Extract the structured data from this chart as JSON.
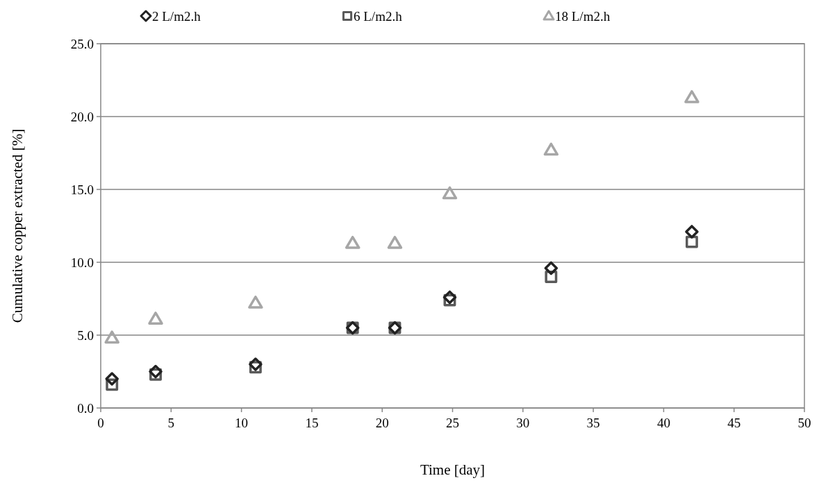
{
  "chart_data": {
    "type": "scatter",
    "xlabel": "Time [day]",
    "ylabel": "Cumulative copper extracted [%]",
    "x": [
      0.8,
      3.9,
      11,
      17.9,
      20.9,
      24.8,
      32,
      42
    ],
    "series": [
      {
        "name": "2 L/m2.h",
        "color": "#222222",
        "marker": "diamond",
        "values": [
          2.0,
          2.5,
          3.0,
          5.5,
          5.5,
          7.6,
          9.6,
          12.1
        ]
      },
      {
        "name": "6 L/m2.h",
        "color": "#595959",
        "marker": "square",
        "values": [
          1.6,
          2.3,
          2.8,
          5.5,
          5.5,
          7.4,
          9.0,
          11.4
        ]
      },
      {
        "name": "18 L/m2.h",
        "color": "#a6a6a6",
        "marker": "triangle",
        "values": [
          4.8,
          6.1,
          7.2,
          11.3,
          11.3,
          14.7,
          17.7,
          21.3
        ]
      }
    ],
    "xlim": [
      0,
      50
    ],
    "xticks": [
      0,
      5,
      10,
      15,
      20,
      25,
      30,
      35,
      40,
      45,
      50
    ],
    "ylim": [
      0,
      25
    ],
    "yticks": [
      {
        "value": 0,
        "label": "0.0"
      },
      {
        "value": 5,
        "label": "5.0"
      },
      {
        "value": 10,
        "label": "10.0"
      },
      {
        "value": 15,
        "label": "15.0"
      },
      {
        "value": 20,
        "label": "20.0"
      },
      {
        "value": 25,
        "label": "25.0"
      }
    ],
    "grid": "y",
    "legend": "top"
  }
}
